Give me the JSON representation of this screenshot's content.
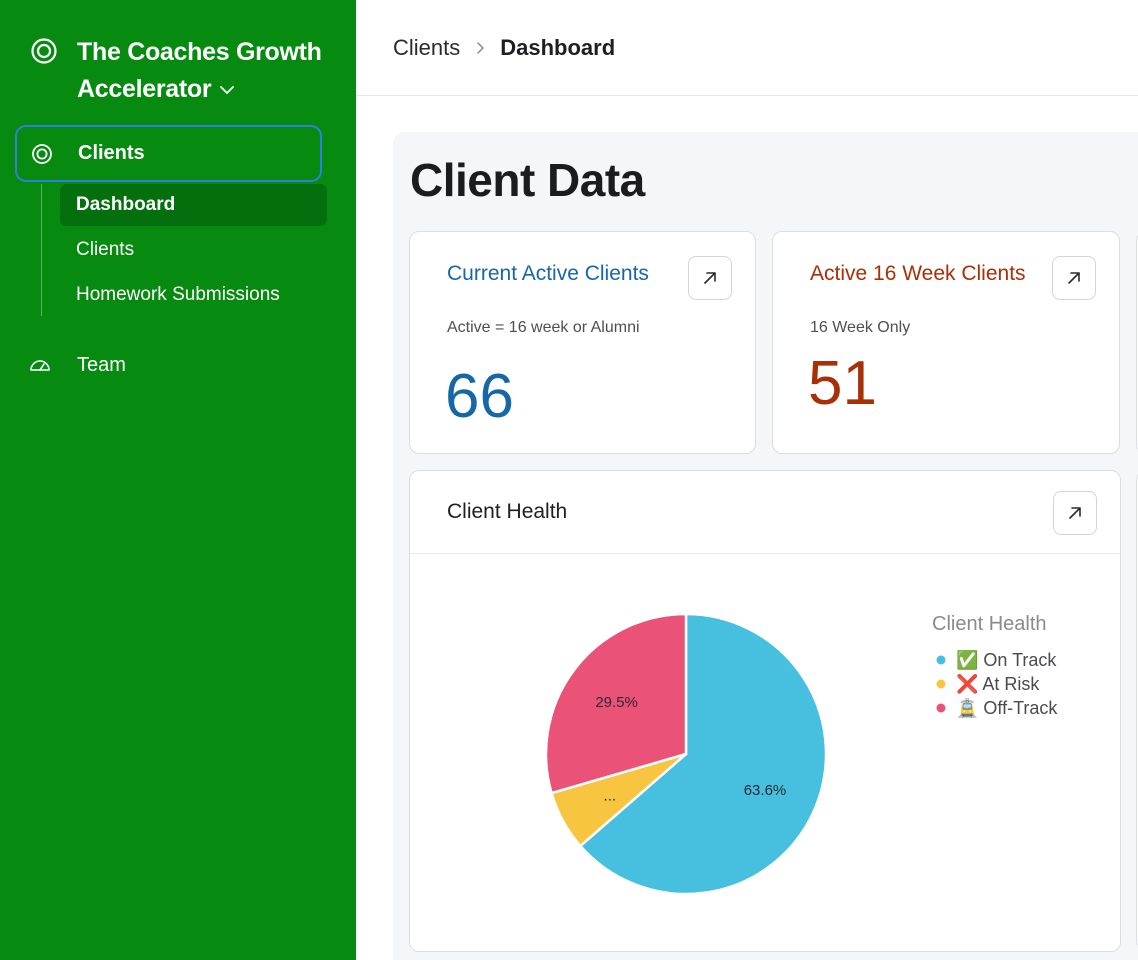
{
  "sidebar": {
    "org_name": "The Coaches Growth Accelerator",
    "nav": {
      "clients_label": "Clients",
      "sub_items": [
        {
          "label": "Dashboard",
          "active": true
        },
        {
          "label": "Clients",
          "active": false
        },
        {
          "label": "Homework Submissions",
          "active": false
        }
      ],
      "team_label": "Team"
    },
    "colors": {
      "background": "#068a10",
      "active_item": "#046f0d",
      "focus_ring": "#2f7fe0"
    }
  },
  "header": {
    "breadcrumb": [
      {
        "label": "Clients"
      },
      {
        "label": "Dashboard",
        "current": true
      }
    ]
  },
  "main": {
    "title": "Client Data",
    "cards": {
      "current_active": {
        "title": "Current Active Clients",
        "subtitle": "Active = 16 week or Alumni",
        "value": "66",
        "color": "#1767a8"
      },
      "active_16_week": {
        "title": "Active 16 Week Clients",
        "subtitle": "16 Week Only",
        "value": "51",
        "color": "#a83006"
      },
      "client_health": {
        "title": "Client Health"
      }
    }
  },
  "chart_data": {
    "type": "pie",
    "legend_title": "Client Health",
    "legend_position": "right",
    "slices": [
      {
        "name": "✅ On Track",
        "value": 63.6,
        "label": "63.6%",
        "color": "#47bfdf"
      },
      {
        "name": "❌ At Risk",
        "value": 6.9,
        "label": "...",
        "color": "#f8c540"
      },
      {
        "name": "🚊 Off-Track",
        "value": 29.5,
        "label": "29.5%",
        "color": "#ea5278"
      }
    ]
  }
}
